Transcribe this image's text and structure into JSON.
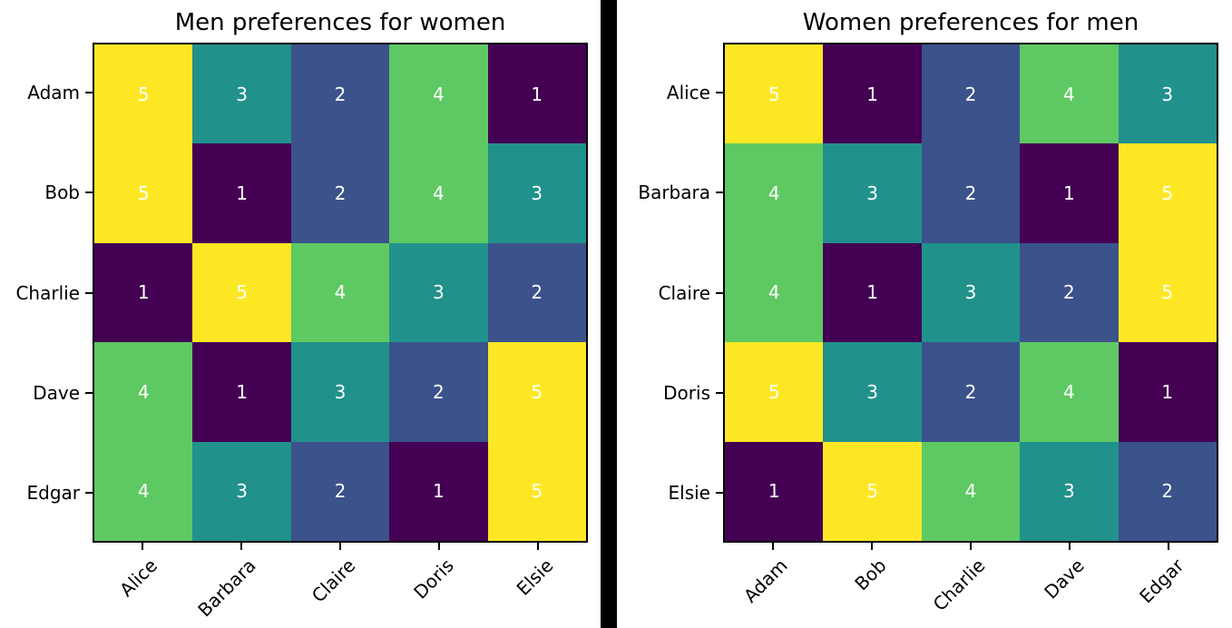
{
  "page": {
    "background": "#ffffff",
    "divider_color": "#000000",
    "axes_border_color": "#000000",
    "label_color": "#000000"
  },
  "colors": {
    "1": "#440154",
    "2": "#3b528b",
    "3": "#21918c",
    "4": "#5ec962",
    "5": "#fde725"
  },
  "chart_data": [
    {
      "type": "heatmap",
      "title": "Men preferences for women",
      "rows": [
        "Adam",
        "Bob",
        "Charlie",
        "Dave",
        "Edgar"
      ],
      "columns": [
        "Alice",
        "Barbara",
        "Claire",
        "Doris",
        "Elsie"
      ],
      "values": [
        [
          5,
          3,
          2,
          4,
          1
        ],
        [
          5,
          1,
          2,
          4,
          3
        ],
        [
          1,
          5,
          4,
          3,
          2
        ],
        [
          4,
          1,
          3,
          2,
          5
        ],
        [
          4,
          3,
          2,
          1,
          5
        ]
      ],
      "colormap": "viridis",
      "value_range": [
        1,
        5
      ],
      "cell_text_color": "#ffffff",
      "grid": "off",
      "legend": "none"
    },
    {
      "type": "heatmap",
      "title": "Women preferences for men",
      "rows": [
        "Alice",
        "Barbara",
        "Claire",
        "Doris",
        "Elsie"
      ],
      "columns": [
        "Adam",
        "Bob",
        "Charlie",
        "Dave",
        "Edgar"
      ],
      "values": [
        [
          5,
          1,
          2,
          4,
          3
        ],
        [
          4,
          3,
          2,
          1,
          5
        ],
        [
          4,
          1,
          3,
          2,
          5
        ],
        [
          5,
          3,
          2,
          4,
          1
        ],
        [
          1,
          5,
          4,
          3,
          2
        ]
      ],
      "colormap": "viridis",
      "value_range": [
        1,
        5
      ],
      "cell_text_color": "#ffffff",
      "grid": "off",
      "legend": "none"
    }
  ]
}
